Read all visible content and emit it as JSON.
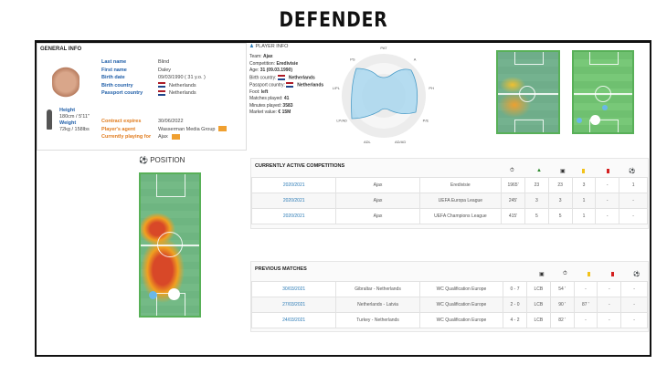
{
  "page_title": "DEFENDER",
  "general_info": {
    "heading": "GENERAL INFO",
    "fields": [
      {
        "label": "Last name",
        "value": "Blind"
      },
      {
        "label": "First name",
        "value": "Daley"
      },
      {
        "label": "Birth date",
        "value": "09/03/1990 ( 31 y.o. )"
      },
      {
        "label": "Birth country",
        "value": "Netherlands"
      },
      {
        "label": "Passport country",
        "value": "Netherlands"
      }
    ],
    "height_label": "Height",
    "height": "180cm / 5'11''",
    "weight_label": "Weight",
    "weight": "72kg / 158lbs",
    "contract": [
      {
        "label": "Contract expires",
        "value": "30/06/2022"
      },
      {
        "label": "Player's agent",
        "value": "Wasserman Media Group"
      },
      {
        "label": "Currently playing for",
        "value": "Ajax"
      }
    ]
  },
  "player_info": {
    "heading": "PLAYER INFO",
    "items": [
      {
        "k": "Team: ",
        "v": "Ajax"
      },
      {
        "k": "Competition: ",
        "v": "Eredivisie"
      },
      {
        "k": "Age: ",
        "v": "31 (09.03.1990)"
      },
      {
        "k": "Birth country: ",
        "v": "Netherlands"
      },
      {
        "k": "Passport country: ",
        "v": "Netherlands"
      },
      {
        "k": "Foot: ",
        "v": "left"
      },
      {
        "k": "Matches played: ",
        "v": "41"
      },
      {
        "k": "Minutes played: ",
        "v": "3583"
      },
      {
        "k": "Market value: ",
        "v": "€ 15M"
      }
    ],
    "radar_labels": [
      "PAT",
      "A",
      "PH",
      "P/E",
      "AD/AD",
      "ADL",
      "LP/AD",
      "L/PL",
      "PS"
    ]
  },
  "position": {
    "heading": "POSITION"
  },
  "active": {
    "heading": "CURRENTLY ACTIVE COMPETITIONS",
    "icons": [
      "clock-icon",
      "boot-icon",
      "shirt-icon",
      "yellow-card-icon",
      "red-card-icon",
      "ball-icon"
    ],
    "rows": [
      [
        "2020/2021",
        "Ajax",
        "Eredivisie",
        "1965'",
        "23",
        "23",
        "3",
        "-",
        "1"
      ],
      [
        "2020/2021",
        "Ajax",
        "UEFA Europa League",
        "245'",
        "3",
        "3",
        "1",
        "-",
        "-"
      ],
      [
        "2020/2021",
        "Ajax",
        "UEFA Champions League",
        "415'",
        "5",
        "5",
        "1",
        "-",
        "-"
      ]
    ]
  },
  "previous": {
    "heading": "PREVIOUS MATCHES",
    "rows": [
      [
        "30/03/2021",
        "Gibraltar - Netherlands",
        "WC Qualification Europe",
        "0 - 7",
        "LCB",
        "54 '",
        "-",
        "-",
        "-"
      ],
      [
        "27/03/2021",
        "Netherlands - Latvia",
        "WC Qualification Europe",
        "2 - 0",
        "LCB",
        "90 '",
        "87 '",
        "-",
        "-"
      ],
      [
        "24/03/2021",
        "Turkey - Netherlands",
        "WC Qualification Europe",
        "4 - 2",
        "LCB",
        "82 '",
        "-",
        "-",
        "-"
      ]
    ]
  }
}
